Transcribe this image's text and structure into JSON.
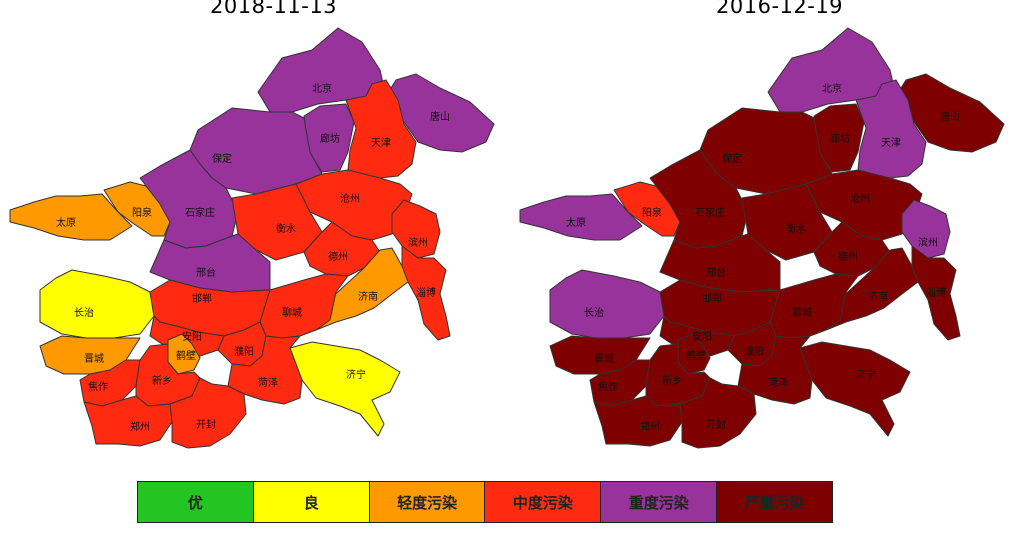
{
  "maps": [
    {
      "date": "2018-11-13",
      "regions": [
        {
          "name": "北京",
          "level": "heavy"
        },
        {
          "name": "唐山",
          "level": "heavy"
        },
        {
          "name": "廊坊",
          "level": "heavy"
        },
        {
          "name": "天津",
          "level": "moderate"
        },
        {
          "name": "保定",
          "level": "heavy"
        },
        {
          "name": "沧州",
          "level": "moderate"
        },
        {
          "name": "阳泉",
          "level": "light"
        },
        {
          "name": "太原",
          "level": "light"
        },
        {
          "name": "石家庄",
          "level": "heavy"
        },
        {
          "name": "衡水",
          "level": "moderate"
        },
        {
          "name": "滨州",
          "level": "moderate"
        },
        {
          "name": "德州",
          "level": "moderate"
        },
        {
          "name": "邢台",
          "level": "heavy"
        },
        {
          "name": "淄博",
          "level": "moderate"
        },
        {
          "name": "济南",
          "level": "light"
        },
        {
          "name": "长治",
          "level": "good"
        },
        {
          "name": "邯郸",
          "level": "moderate"
        },
        {
          "name": "聊城",
          "level": "moderate"
        },
        {
          "name": "安阳",
          "level": "moderate"
        },
        {
          "name": "晋城",
          "level": "light"
        },
        {
          "name": "鹤壁",
          "level": "light"
        },
        {
          "name": "濮阳",
          "level": "moderate"
        },
        {
          "name": "济宁",
          "level": "good"
        },
        {
          "name": "焦作",
          "level": "moderate"
        },
        {
          "name": "新乡",
          "level": "moderate"
        },
        {
          "name": "菏泽",
          "level": "moderate"
        },
        {
          "name": "郑州",
          "level": "moderate"
        },
        {
          "name": "开封",
          "level": "moderate"
        }
      ]
    },
    {
      "date": "2016-12-19",
      "regions": [
        {
          "name": "北京",
          "level": "heavy"
        },
        {
          "name": "唐山",
          "level": "severe"
        },
        {
          "name": "廊坊",
          "level": "severe"
        },
        {
          "name": "天津",
          "level": "heavy"
        },
        {
          "name": "保定",
          "level": "severe"
        },
        {
          "name": "沧州",
          "level": "severe"
        },
        {
          "name": "阳泉",
          "level": "moderate"
        },
        {
          "name": "太原",
          "level": "heavy"
        },
        {
          "name": "石家庄",
          "level": "severe"
        },
        {
          "name": "衡水",
          "level": "severe"
        },
        {
          "name": "滨州",
          "level": "heavy"
        },
        {
          "name": "德州",
          "level": "severe"
        },
        {
          "name": "邢台",
          "level": "severe"
        },
        {
          "name": "淄博",
          "level": "severe"
        },
        {
          "name": "济南",
          "level": "severe"
        },
        {
          "name": "长治",
          "level": "heavy"
        },
        {
          "name": "邯郸",
          "level": "severe"
        },
        {
          "name": "聊城",
          "level": "severe"
        },
        {
          "name": "安阳",
          "level": "severe"
        },
        {
          "name": "晋城",
          "level": "severe"
        },
        {
          "name": "鹤壁",
          "level": "severe"
        },
        {
          "name": "濮阳",
          "level": "severe"
        },
        {
          "name": "济宁",
          "level": "severe"
        },
        {
          "name": "焦作",
          "level": "severe"
        },
        {
          "name": "新乡",
          "level": "severe"
        },
        {
          "name": "菏泽",
          "level": "severe"
        },
        {
          "name": "郑州",
          "level": "severe"
        },
        {
          "name": "开封",
          "level": "severe"
        }
      ]
    }
  ],
  "legend": [
    {
      "key": "excellent",
      "label": "优",
      "color": "#22c522"
    },
    {
      "key": "good",
      "label": "良",
      "color": "#ffff00"
    },
    {
      "key": "light",
      "label": "轻度污染",
      "color": "#ff9900"
    },
    {
      "key": "moderate",
      "label": "中度污染",
      "color": "#ff2a10"
    },
    {
      "key": "heavy",
      "label": "重度污染",
      "color": "#99339c"
    },
    {
      "key": "severe",
      "label": "严重污染",
      "color": "#7f0000"
    }
  ]
}
